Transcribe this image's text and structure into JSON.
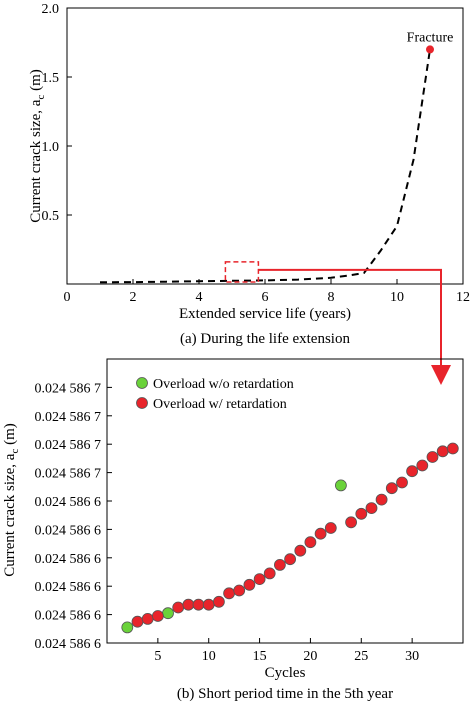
{
  "colors": {
    "line": "#000000",
    "fracture": "#e8242b",
    "callout": "#e8242b",
    "overload_retard": "#e8242b",
    "overload_noretard": "#6ad23a"
  },
  "chart_data": [
    {
      "type": "line",
      "title": "",
      "caption": "(a) During the life extension",
      "xlabel": "Extended service life (years)",
      "ylabel": "Current crack size, a",
      "ylabel_sub": "c",
      "ylabel_unit": " (m)",
      "xlim": [
        0,
        12
      ],
      "ylim": [
        0,
        2.0
      ],
      "xticks": [
        0,
        2,
        4,
        6,
        8,
        10,
        12
      ],
      "xtick_labels": [
        "0",
        "2",
        "4",
        "6",
        "8",
        "10",
        "12"
      ],
      "yticks": [
        0.5,
        1.0,
        1.5,
        2.0
      ],
      "ytick_labels": [
        "0.5",
        "1.0",
        "1.5",
        "2.0"
      ],
      "grid": false,
      "series": [
        {
          "style": "dashed",
          "x": [
            1.0,
            2.0,
            3.0,
            4.0,
            5.0,
            6.0,
            7.0,
            8.0,
            8.5,
            9.0,
            9.5,
            10.0,
            10.5,
            11.0
          ],
          "y": [
            0.012,
            0.014,
            0.017,
            0.02,
            0.023,
            0.026,
            0.032,
            0.045,
            0.06,
            0.08,
            0.24,
            0.42,
            0.9,
            1.7
          ]
        }
      ],
      "annotation": {
        "label": "Fracture",
        "x": 11.0,
        "y": 1.7
      },
      "zoom_box": {
        "x": [
          4.8,
          5.8
        ],
        "y": [
          0.0,
          0.16
        ]
      }
    },
    {
      "type": "scatter",
      "title": "",
      "caption": "(b) Short period time in the 5th year",
      "xlabel": "Cycles",
      "ylabel": "Current crack size, a",
      "ylabel_sub": "c",
      "ylabel_unit": " (m)",
      "xlim": [
        0,
        35
      ],
      "ylim": [
        0,
        10
      ],
      "xticks": [
        5,
        10,
        15,
        20,
        25,
        30
      ],
      "xtick_labels": [
        "5",
        "10",
        "15",
        "20",
        "25",
        "30"
      ],
      "yticks": [
        0,
        1,
        2,
        3,
        4,
        5,
        6,
        7,
        8,
        9
      ],
      "ytick_labels": [
        "0.024 586 6",
        "0.024 586 6",
        "0.024 586 6",
        "0.024 586 6",
        "0.024 586 6",
        "0.024 586 6",
        "0.024 586 7",
        "0.024 586 7",
        "0.024 586 7",
        "0.024 586 7"
      ],
      "grid": false,
      "legend_position": "top-left",
      "series": [
        {
          "name": "Overload w/o retardation",
          "color": "#6ad23a",
          "x": [
            2,
            6,
            23
          ],
          "y": [
            0.55,
            1.05,
            5.55
          ]
        },
        {
          "name": "Overload w/ retardation",
          "color": "#e8242b",
          "x": [
            3,
            4,
            5,
            7,
            8,
            9,
            10,
            11,
            12,
            13,
            14,
            15,
            16,
            17,
            18,
            19,
            20,
            21,
            22,
            24,
            25,
            26,
            27,
            28,
            29,
            30,
            31,
            32,
            33,
            34
          ],
          "y": [
            0.75,
            0.85,
            0.95,
            1.25,
            1.35,
            1.35,
            1.35,
            1.45,
            1.75,
            1.85,
            2.05,
            2.25,
            2.45,
            2.75,
            2.95,
            3.25,
            3.55,
            3.85,
            4.05,
            4.25,
            4.55,
            4.75,
            5.05,
            5.45,
            5.65,
            6.05,
            6.25,
            6.55,
            6.75,
            6.85
          ]
        }
      ]
    }
  ]
}
